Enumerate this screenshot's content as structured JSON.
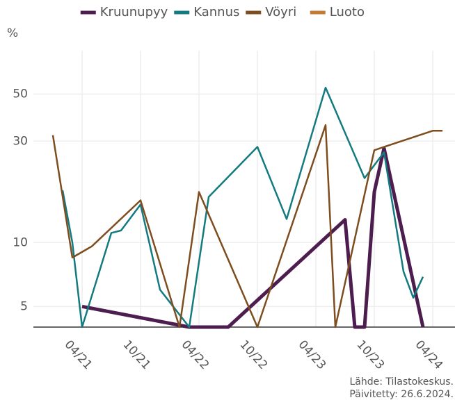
{
  "chart_data": {
    "type": "line",
    "y_label": "%",
    "log_scale": true,
    "grid": true,
    "legend": "top",
    "xlim": [
      "2020-11",
      "2024-06"
    ],
    "xticks": [
      {
        "value": "2021-04",
        "label": "04/21"
      },
      {
        "value": "2021-10",
        "label": "10/21"
      },
      {
        "value": "2022-04",
        "label": "04/22"
      },
      {
        "value": "2022-10",
        "label": "10/22"
      },
      {
        "value": "2023-04",
        "label": "04/23"
      },
      {
        "value": "2023-10",
        "label": "10/23"
      },
      {
        "value": "2024-04",
        "label": "04/24"
      }
    ],
    "ylim": [
      4,
      80
    ],
    "yticks": [
      5,
      10,
      30,
      50
    ],
    "series": [
      {
        "name": "Kruunupyy",
        "color": "#4d1d50",
        "width": 5,
        "x": [
          "2021-04",
          "2022-03",
          "2022-07",
          "2023-07",
          "2023-08",
          "2023-09",
          "2023-10",
          "2023-11",
          "2024-03"
        ],
        "values": [
          5.0,
          4,
          4,
          12.8,
          4,
          4,
          17.3,
          27.8,
          4
        ]
      },
      {
        "name": "Kannus",
        "color": "#137b80",
        "width": 2.5,
        "x": [
          "2021-02",
          "2021-03",
          "2021-04",
          "2021-07",
          "2021-08",
          "2021-10",
          "2021-12",
          "2022-03",
          "2022-05",
          "2022-10",
          "2023-01",
          "2023-05",
          "2023-09",
          "2023-11",
          "2024-01",
          "2024-02",
          "2024-03"
        ],
        "values": [
          17.6,
          10,
          4,
          11.1,
          11.4,
          15.1,
          6.0,
          4,
          16.4,
          28.2,
          12.9,
          53.6,
          20.1,
          26.6,
          7.3,
          5.5,
          6.9
        ]
      },
      {
        "name": "Vöyri",
        "color": "#7e4d1f",
        "width": 2.5,
        "x": [
          "2021-01",
          "2021-03",
          "2021-05",
          "2021-10",
          "2022-02",
          "2022-04",
          "2022-10",
          "2023-05",
          "2023-06",
          "2023-10",
          "2023-11",
          "2024-04",
          "2024-05"
        ],
        "values": [
          32,
          8.5,
          9.6,
          15.8,
          4,
          17.3,
          4,
          35.7,
          4,
          27.2,
          28.2,
          33.6,
          33.6
        ]
      },
      {
        "name": "Luoto",
        "color": "#c27a35",
        "width": 2.5,
        "x": [],
        "values": []
      }
    ],
    "notes": [
      "Lähde: Tilastokeskus.",
      "Päivitetty: 26.6.2024."
    ]
  }
}
